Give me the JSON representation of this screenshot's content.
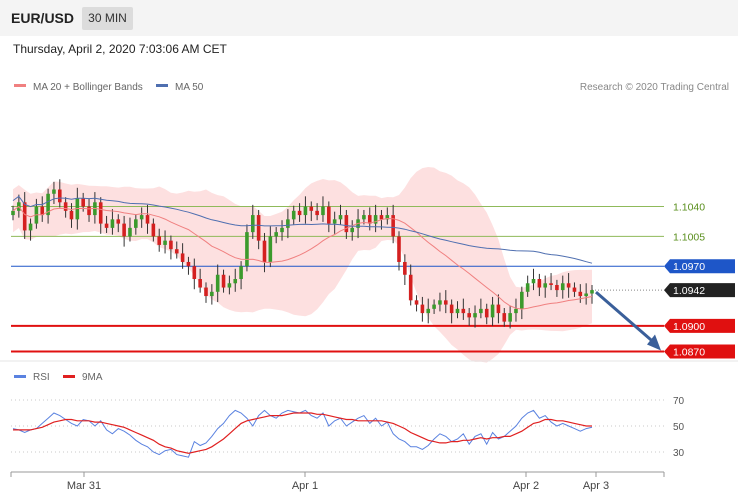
{
  "header": {
    "symbol": "EUR/USD",
    "timeframe": "30 MIN",
    "datetime": "Thursday, April 2, 2020 7:03:06 AM CET"
  },
  "legend": {
    "ma20_bb": "MA 20 + Bollinger Bands",
    "ma50": "MA 50",
    "copyright": "Research © 2020 Trading Central",
    "rsi": "RSI",
    "rsi_ma": "9MA"
  },
  "colors": {
    "resistance": "#8fba5a",
    "pivot": "#1e56c8",
    "support": "#e01010",
    "price_tag": "#222222",
    "bollinger_fill": "#fde0e0",
    "ma20": "#f08080",
    "ma50": "#4f6fb0",
    "candle_up": "#3b9a2c",
    "candle_down": "#d42020",
    "arrow": "#3a5f9a",
    "rsi_line": "#5a82e0",
    "rsi_ma": "#e02020"
  },
  "chart_data": [
    {
      "type": "candlestick",
      "title": "EUR/USD 30 MIN",
      "x_ticks": [
        "Mar 31",
        "Apr 1",
        "Apr 2",
        "Apr 3"
      ],
      "levels": [
        {
          "value": 1.104,
          "label": "1.1040",
          "kind": "resistance"
        },
        {
          "value": 1.1005,
          "label": "1.1005",
          "kind": "resistance"
        },
        {
          "value": 1.097,
          "label": "1.0970",
          "kind": "pivot"
        },
        {
          "value": 1.0942,
          "label": "1.0942",
          "kind": "last_price"
        },
        {
          "value": 1.09,
          "label": "1.0900",
          "kind": "support"
        },
        {
          "value": 1.087,
          "label": "1.0870",
          "kind": "support"
        }
      ],
      "ylim": [
        1.086,
        1.1165
      ],
      "close": [
        1.1035,
        1.1045,
        1.1012,
        1.102,
        1.104,
        1.103,
        1.1055,
        1.106,
        1.1045,
        1.1035,
        1.1025,
        1.105,
        1.104,
        1.103,
        1.1045,
        1.102,
        1.1015,
        1.1025,
        1.102,
        1.1005,
        1.1015,
        1.1025,
        1.103,
        1.102,
        1.1005,
        1.0995,
        1.1,
        1.099,
        1.0985,
        1.0975,
        1.097,
        1.0955,
        1.0945,
        1.0935,
        1.094,
        1.096,
        1.0945,
        1.095,
        1.0955,
        1.097,
        1.101,
        1.103,
        1.1,
        1.0975,
        1.1005,
        1.101,
        1.1015,
        1.1025,
        1.1035,
        1.103,
        1.104,
        1.1035,
        1.103,
        1.104,
        1.102,
        1.1025,
        1.103,
        1.101,
        1.1015,
        1.1025,
        1.103,
        1.102,
        1.103,
        1.1025,
        1.103,
        1.1005,
        1.0975,
        1.096,
        1.093,
        1.0925,
        1.0915,
        1.092,
        1.0925,
        1.093,
        1.0925,
        1.0915,
        1.092,
        1.0915,
        1.091,
        1.0915,
        1.092,
        1.091,
        1.0925,
        1.0915,
        1.0905,
        1.0915,
        1.092,
        1.094,
        1.095,
        1.0955,
        1.0945,
        1.095,
        1.0948,
        1.0942,
        1.095,
        1.0945,
        1.094,
        1.0935,
        1.0938,
        1.0942
      ],
      "forecast": {
        "from": 1.0942,
        "to": 1.087
      }
    },
    {
      "type": "line",
      "series": [
        {
          "name": "RSI"
        },
        {
          "name": "9MA"
        }
      ],
      "y_ticks": [
        30,
        50,
        70
      ],
      "ylim": [
        20,
        80
      ],
      "rsi": [
        48,
        47,
        45,
        47,
        48,
        52,
        56,
        60,
        58,
        55,
        52,
        50,
        55,
        54,
        50,
        54,
        47,
        44,
        48,
        46,
        43,
        39,
        36,
        34,
        30,
        28,
        31,
        32,
        28,
        27,
        26,
        38,
        35,
        37,
        42,
        48,
        52,
        58,
        62,
        60,
        56,
        50,
        58,
        62,
        58,
        56,
        60,
        62,
        61,
        60,
        62,
        58,
        56,
        60,
        50,
        54,
        56,
        50,
        53,
        56,
        58,
        52,
        56,
        50,
        53,
        44,
        40,
        38,
        34,
        34,
        32,
        35,
        40,
        44,
        42,
        38,
        40,
        44,
        36,
        42,
        44,
        36,
        45,
        40,
        42,
        46,
        50,
        56,
        60,
        62,
        56,
        58,
        53,
        50,
        52,
        50,
        48,
        46,
        48,
        49
      ],
      "rsi_ma": [
        47,
        47,
        47,
        47,
        48,
        49,
        51,
        53,
        54,
        55,
        55,
        54,
        54,
        54,
        53,
        53,
        52,
        51,
        50,
        49,
        47,
        45,
        43,
        41,
        39,
        36,
        34,
        33,
        31,
        30,
        29,
        30,
        31,
        32,
        34,
        37,
        40,
        44,
        48,
        52,
        54,
        55,
        56,
        57,
        58,
        58,
        58,
        59,
        60,
        60,
        60,
        60,
        59,
        59,
        58,
        57,
        56,
        55,
        55,
        54,
        54,
        54,
        54,
        54,
        53,
        52,
        50,
        48,
        45,
        43,
        41,
        39,
        38,
        37,
        37,
        38,
        38,
        39,
        39,
        40,
        41,
        40,
        41,
        41,
        42,
        42,
        44,
        46,
        49,
        52,
        53,
        55,
        55,
        54,
        54,
        53,
        52,
        51,
        50,
        50
      ]
    }
  ]
}
